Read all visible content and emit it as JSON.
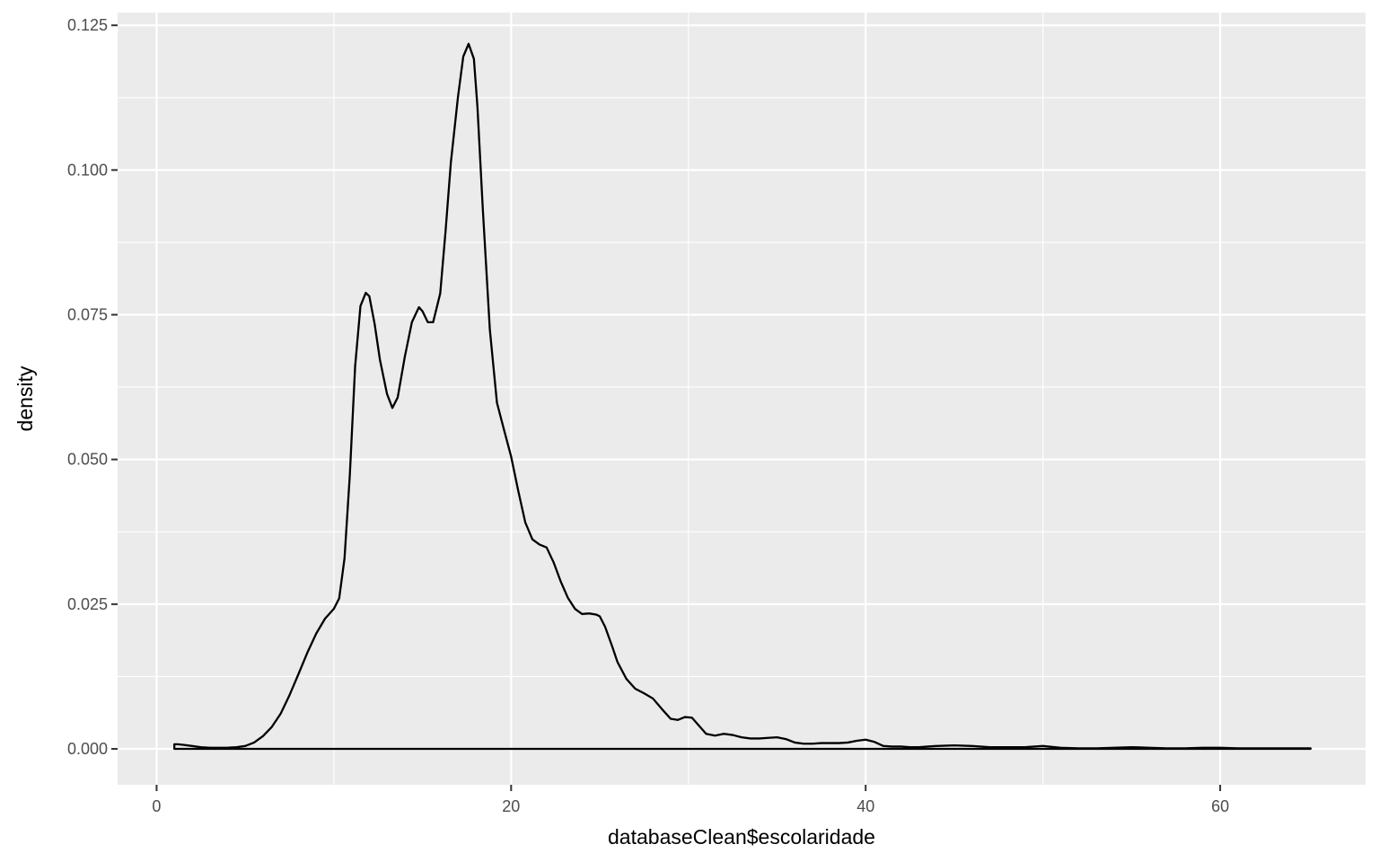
{
  "chart_data": {
    "type": "area",
    "title": "",
    "xlabel": "databaseClean$escolaridade",
    "ylabel": "density",
    "xlim": [
      -2.2,
      68.2
    ],
    "ylim": [
      -0.0062,
      0.1272
    ],
    "x_ticks": [
      0,
      20,
      40,
      60
    ],
    "x_tick_labels": [
      "0",
      "20",
      "40",
      "60"
    ],
    "y_ticks": [
      0.0,
      0.025,
      0.05,
      0.075,
      0.1,
      0.125
    ],
    "y_tick_labels": [
      "0.000",
      "0.025",
      "0.050",
      "0.075",
      "0.100",
      "0.125"
    ],
    "x_minor_ticks": [
      10,
      30,
      50
    ],
    "y_minor_ticks": [
      0.0125,
      0.0375,
      0.0625,
      0.0875,
      0.1125
    ],
    "grid": true,
    "legend": "none",
    "colors": {
      "panel": "#ebebeb",
      "grid": "#ffffff",
      "line": "#000000",
      "tick": "#333333"
    },
    "series": [
      {
        "x": [
          1,
          1.2,
          1.5,
          2,
          2.5,
          3,
          3.5,
          4,
          4.5,
          5,
          5.5,
          6,
          6.5,
          7,
          7.5,
          8,
          8.5,
          9,
          9.5,
          10,
          10.3,
          10.6,
          10.9,
          11.2,
          11.5,
          11.8,
          12,
          12.3,
          12.6,
          13,
          13.3,
          13.6,
          14,
          14.4,
          14.8,
          15,
          15.3,
          15.6,
          16,
          16.3,
          16.6,
          17,
          17.3,
          17.6,
          17.9,
          18.1,
          18.4,
          18.8,
          19.2,
          19.6,
          20,
          20.4,
          20.8,
          21.2,
          21.6,
          22,
          22.4,
          22.8,
          23.2,
          23.6,
          24,
          24.4,
          24.8,
          25,
          25.3,
          25.7,
          26,
          26.5,
          27,
          27.5,
          28,
          28.5,
          29,
          29.4,
          29.8,
          30.2,
          30.6,
          31,
          31.5,
          32,
          32.5,
          33,
          33.5,
          34,
          34.5,
          35,
          35.5,
          36,
          36.5,
          37,
          37.5,
          38,
          38.5,
          39,
          39.5,
          40,
          40.5,
          41,
          41.5,
          42,
          42.5,
          43,
          43.5,
          44,
          45,
          46,
          47,
          48,
          49,
          50,
          51,
          52,
          53,
          54,
          55,
          56,
          57,
          58,
          59,
          60,
          61,
          62,
          63,
          64,
          65.1
        ],
        "y": [
          0.0008,
          0.0008,
          0.0007,
          0.0005,
          0.0003,
          0.0002,
          0.0002,
          0.0002,
          0.0003,
          0.0005,
          0.0011,
          0.0022,
          0.0038,
          0.0061,
          0.0093,
          0.0129,
          0.0166,
          0.0199,
          0.0225,
          0.0242,
          0.026,
          0.0329,
          0.0473,
          0.0661,
          0.0765,
          0.0788,
          0.0782,
          0.0734,
          0.0672,
          0.0613,
          0.0589,
          0.0607,
          0.0677,
          0.0737,
          0.0763,
          0.0756,
          0.0737,
          0.0737,
          0.0787,
          0.0894,
          0.1013,
          0.1126,
          0.1196,
          0.1218,
          0.1192,
          0.1109,
          0.0934,
          0.0724,
          0.0598,
          0.0551,
          0.0505,
          0.0446,
          0.0391,
          0.0362,
          0.0353,
          0.0348,
          0.0322,
          0.0289,
          0.0261,
          0.0242,
          0.0233,
          0.0234,
          0.0232,
          0.0229,
          0.0211,
          0.0177,
          0.015,
          0.0121,
          0.0104,
          0.0096,
          0.0087,
          0.0069,
          0.0052,
          0.005,
          0.0055,
          0.0054,
          0.004,
          0.0026,
          0.0023,
          0.0026,
          0.0024,
          0.002,
          0.0018,
          0.0018,
          0.0019,
          0.002,
          0.0017,
          0.0011,
          0.0009,
          0.0009,
          0.001,
          0.001,
          0.001,
          0.0011,
          0.0014,
          0.0016,
          0.0012,
          0.0005,
          0.0004,
          0.0004,
          0.0003,
          0.0003,
          0.0004,
          0.0005,
          0.0006,
          0.0005,
          0.0003,
          0.0003,
          0.0003,
          0.0005,
          0.0002,
          0.0001,
          0.0001,
          0.0002,
          0.0003,
          0.0002,
          0.0001,
          0.0001,
          0.0002,
          0.0002,
          0.0001,
          0.0001,
          0.0001,
          0.0001,
          0.0001
        ]
      }
    ]
  }
}
